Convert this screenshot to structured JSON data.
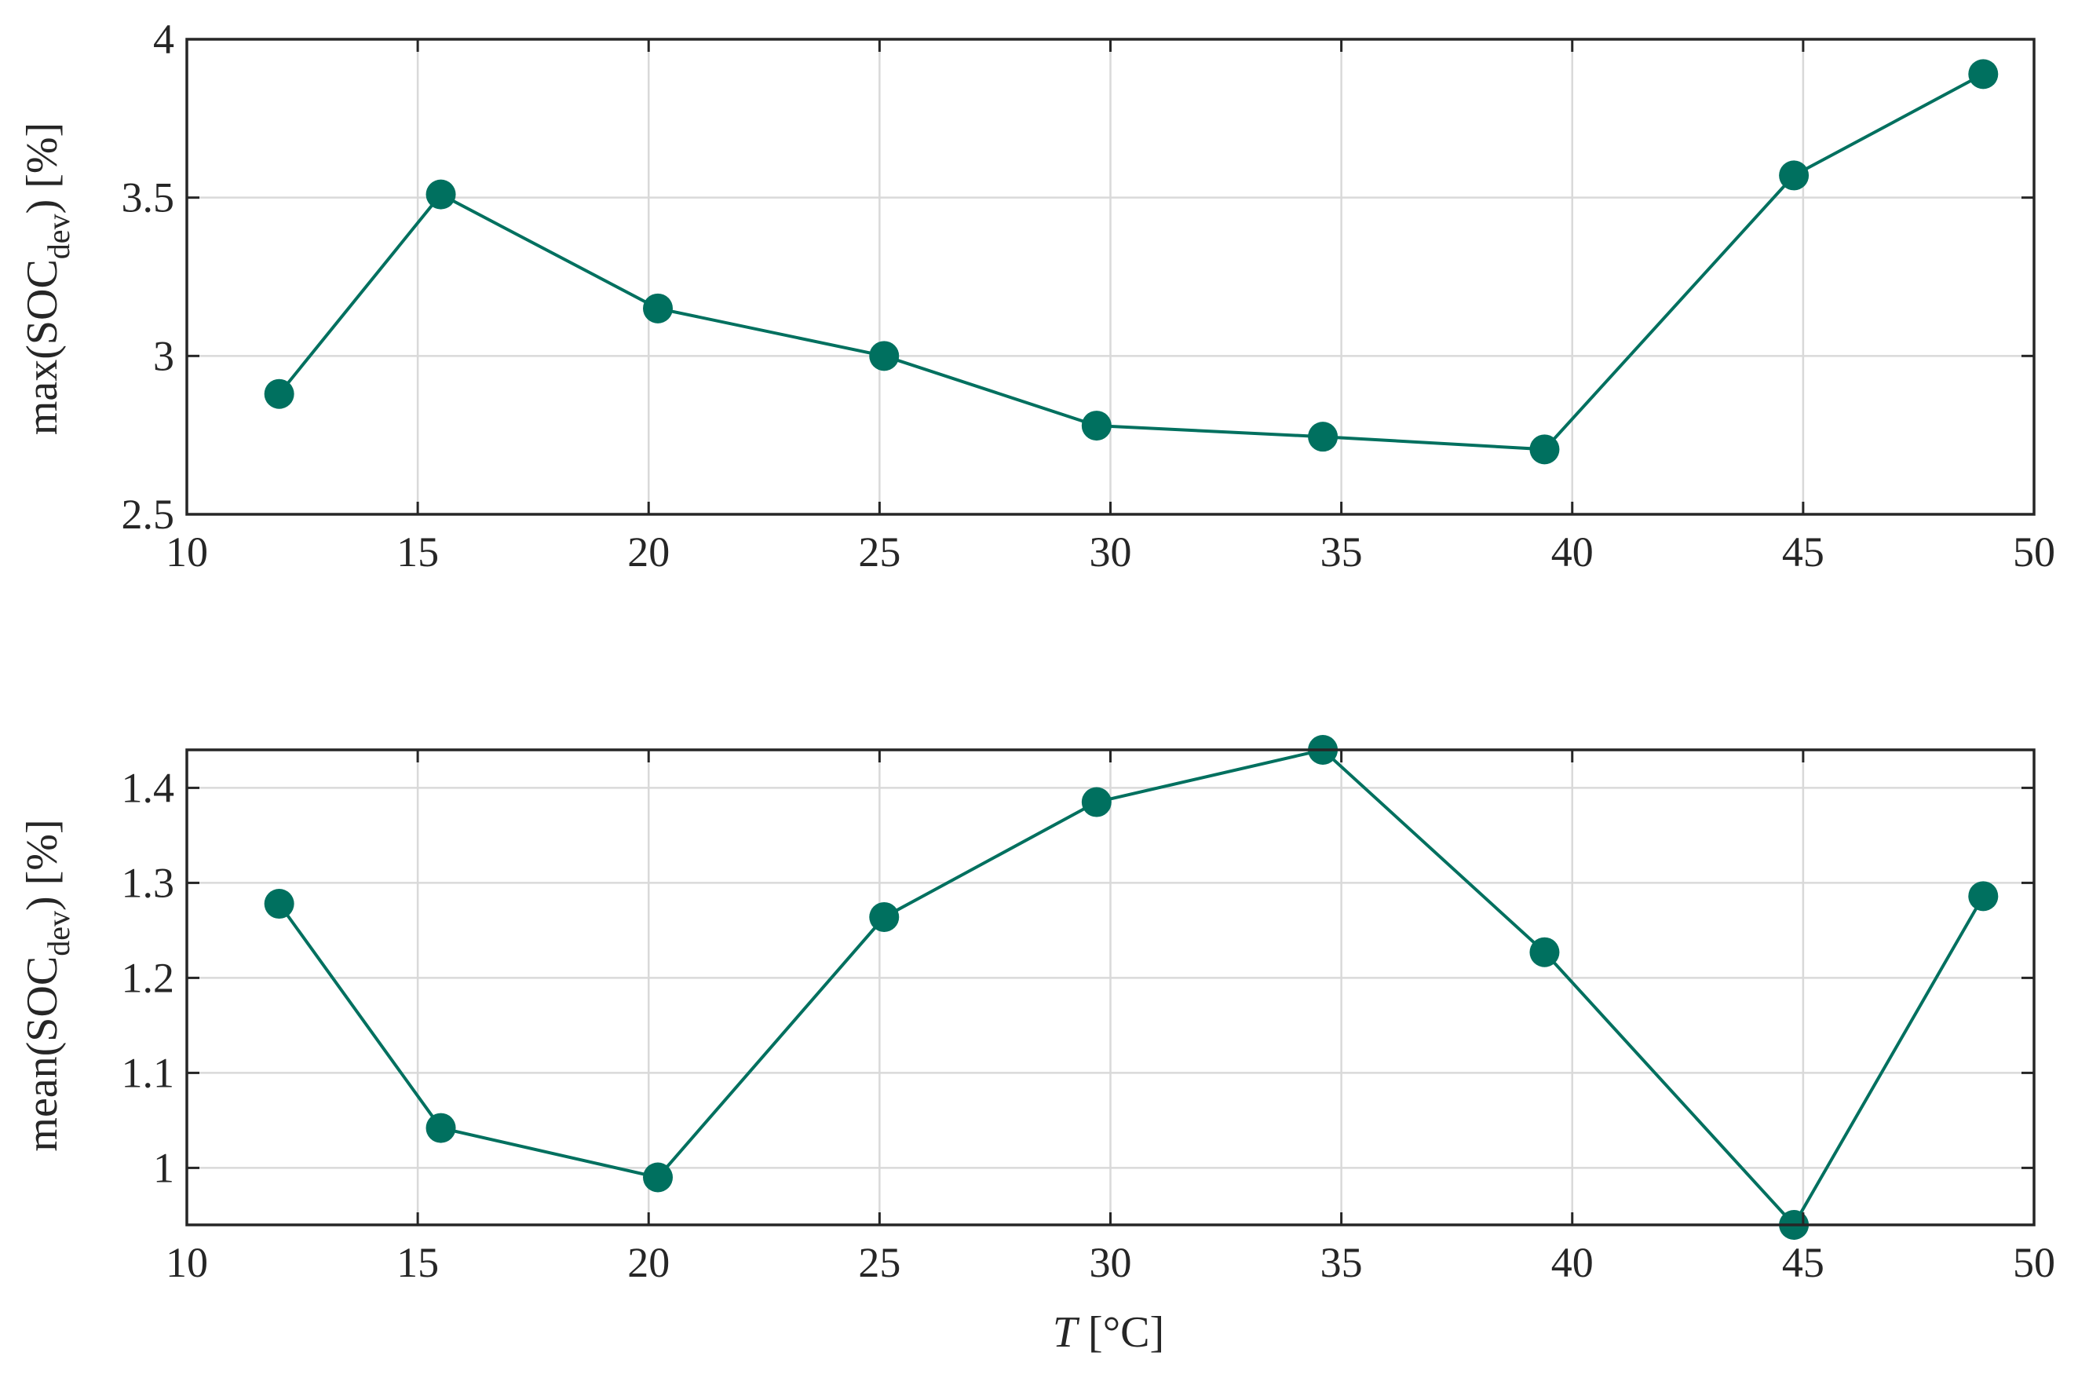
{
  "colors": {
    "series": "#00705F",
    "axis": "#262626",
    "grid": "#D9D9D9",
    "background": "#FFFFFF"
  },
  "chart_data": [
    {
      "type": "line",
      "markers": "filled-circle",
      "x": [
        12,
        15.5,
        20.2,
        25.1,
        29.7,
        34.6,
        39.4,
        44.8,
        48.9
      ],
      "series": [
        {
          "values": [
            2.88,
            3.51,
            3.15,
            3.0,
            2.78,
            2.745,
            2.705,
            3.57,
            3.89
          ]
        }
      ],
      "xlim": [
        10,
        50
      ],
      "ylim": [
        2.5,
        4
      ],
      "xticks": [
        "10",
        "15",
        "20",
        "25",
        "30",
        "35",
        "40",
        "45",
        "50"
      ],
      "yticks": [
        "2.5",
        "3",
        "3.5",
        "4"
      ],
      "ylabel": {
        "pre": "max(SOC",
        "sub": "dev",
        "post": ") [%]"
      },
      "xlabel": "",
      "grid": true,
      "box": true
    },
    {
      "type": "line",
      "markers": "filled-circle",
      "x": [
        12,
        15.5,
        20.2,
        25.1,
        29.7,
        34.6,
        39.4,
        44.8,
        48.9
      ],
      "series": [
        {
          "values": [
            1.278,
            1.042,
            0.99,
            1.264,
            1.385,
            1.44,
            1.227,
            0.94,
            1.286
          ]
        }
      ],
      "xlim": [
        10,
        50
      ],
      "ylim": [
        0.94,
        1.44
      ],
      "xticks": [
        "10",
        "15",
        "20",
        "25",
        "30",
        "35",
        "40",
        "45",
        "50"
      ],
      "yticks": [
        "1",
        "1.1",
        "1.2",
        "1.3",
        "1.4"
      ],
      "ylabel": {
        "pre": "mean(SOC",
        "sub": "dev",
        "post": ") [%]"
      },
      "xlabel": {
        "var": "T",
        "unit": " [°C]"
      },
      "grid": true,
      "box": true
    }
  ]
}
